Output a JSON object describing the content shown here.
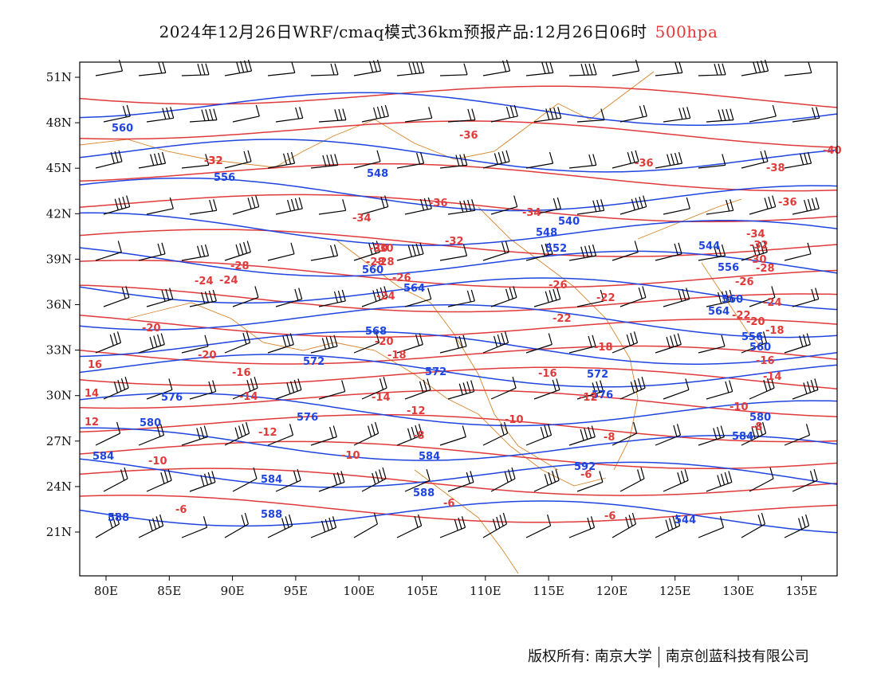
{
  "header": {
    "title": "2024年12月26日WRF/cmaq模式36km预报产品:12月26日06时",
    "level": "500hpa"
  },
  "map": {
    "lat_labels": [
      "51N",
      "48N",
      "45N",
      "42N",
      "39N",
      "36N",
      "33N",
      "30N",
      "27N",
      "24N",
      "21N"
    ],
    "lon_labels": [
      "80E",
      "85E",
      "90E",
      "95E",
      "100E",
      "105E",
      "110E",
      "115E",
      "120E",
      "125E",
      "130E",
      "135E"
    ],
    "colors": {
      "height_contour": "#1f45e0",
      "temperature_contour": "#e03a3a",
      "boundaries": "#d8862c",
      "wind_barbs": "#000000"
    },
    "height_labels": [
      "560",
      "556",
      "548",
      "548",
      "552",
      "560",
      "564",
      "568",
      "572",
      "572",
      "572",
      "576",
      "576",
      "576",
      "580",
      "580",
      "584",
      "584",
      "584",
      "584",
      "588",
      "588",
      "588",
      "592",
      "544",
      "540",
      "544",
      "556",
      "560",
      "564",
      "556",
      "560"
    ],
    "temperature_labels": [
      "-32",
      "-36",
      "-36",
      "-36",
      "-34",
      "-34",
      "-32",
      "-30",
      "-28",
      "-28",
      "-26",
      "-26",
      "-24",
      "-24",
      "-22",
      "-22",
      "-20",
      "-20",
      "-20",
      "-18",
      "-18",
      "-16",
      "-16",
      "-14",
      "-14",
      "-12",
      "-12",
      "-12",
      "-10",
      "-10",
      "-10",
      "-10",
      "-8",
      "-8",
      "-6",
      "-6",
      "-6",
      "-6",
      "-40",
      "-38",
      "-36",
      "-34",
      "-32",
      "-30",
      "-28",
      "-26",
      "-24",
      "-22",
      "-20",
      "-18",
      "-16",
      "-14",
      "-8",
      "-32",
      "-30",
      "-28",
      "16",
      "14",
      "12",
      "-24"
    ]
  },
  "footer": {
    "copyright": "版权所有: 南京大学",
    "company": "南京创蓝科技有限公司"
  }
}
